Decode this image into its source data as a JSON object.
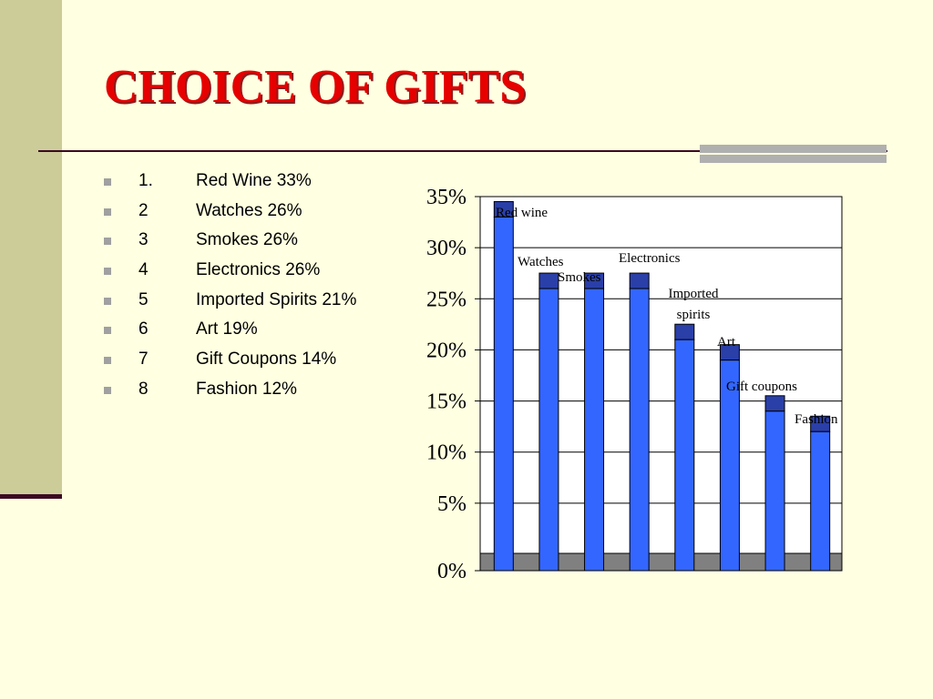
{
  "slide": {
    "title": "CHOICE OF GIFTS",
    "bullets": [
      {
        "num": "1.",
        "text": "Red Wine 33%"
      },
      {
        "num": "2",
        "text": "Watches 26%"
      },
      {
        "num": "3",
        "text": "Smokes 26%"
      },
      {
        "num": "4",
        "text": "Electronics 26%"
      },
      {
        "num": "5",
        "text": "Imported Spirits 21%"
      },
      {
        "num": "6",
        "text": "Art 19%"
      },
      {
        "num": "7",
        "text": "Gift Coupons 14%"
      },
      {
        "num": "8",
        "text": "Fashion 12%"
      }
    ]
  },
  "chart_data": {
    "type": "bar",
    "title": "",
    "xlabel": "",
    "ylabel": "",
    "ylim": [
      0,
      35
    ],
    "yticks": [
      "0%",
      "5%",
      "10%",
      "15%",
      "20%",
      "25%",
      "30%",
      "35%"
    ],
    "grid": true,
    "categories": [
      "Red wine",
      "Watches",
      "Smokes",
      "Electronics",
      "Imported spirits",
      "Art",
      "Gift coupons",
      "Fashion"
    ],
    "values": [
      33,
      26,
      26,
      26,
      21,
      19,
      14,
      12
    ],
    "labels": [
      [
        "Red wine"
      ],
      [
        "Watches"
      ],
      [
        "Smokes"
      ],
      [
        "Electronics"
      ],
      [
        "Imported",
        "spirits"
      ],
      [
        "Art"
      ],
      [
        "Gift coupons"
      ],
      [
        "Fashion"
      ]
    ],
    "colors": {
      "bar": "#3366FF",
      "bar_top": "#2A3FA8",
      "floor": "#808080",
      "plot_bg": "#FFFFFF"
    }
  }
}
